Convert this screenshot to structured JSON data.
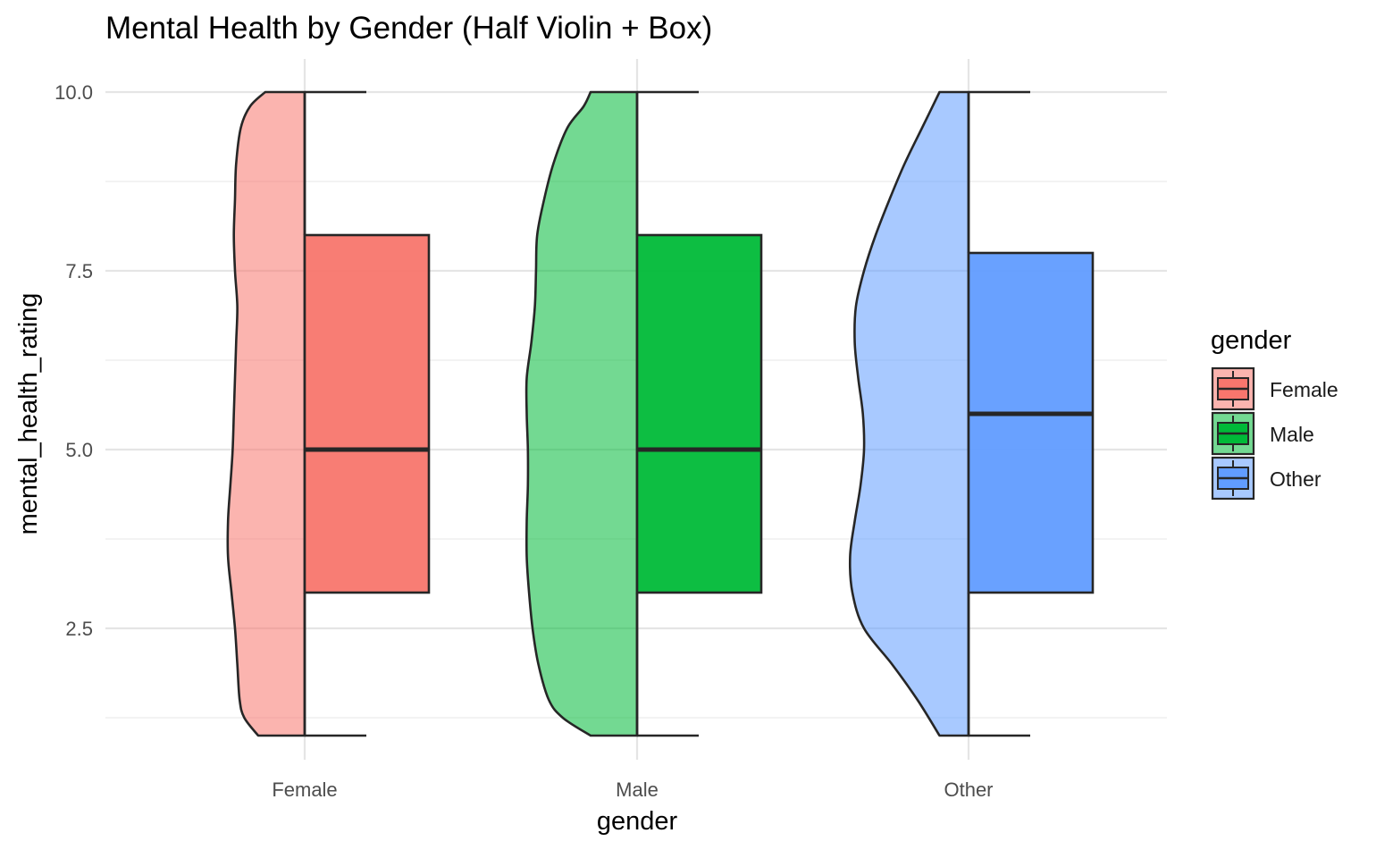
{
  "chart_data": {
    "type": "box",
    "title": "Mental Health by Gender (Half Violin + Box)",
    "xlabel": "gender",
    "ylabel": "mental_health_rating",
    "categories": [
      "Female",
      "Male",
      "Other"
    ],
    "ylim": [
      0.8,
      10.35
    ],
    "yticks": [
      2.5,
      5.0,
      7.5,
      10.0
    ],
    "ytick_labels": [
      "2.5",
      "5.0",
      "7.5",
      "10.0"
    ],
    "grid": true,
    "legend": {
      "title": "gender",
      "position": "right",
      "entries": [
        "Female",
        "Male",
        "Other"
      ]
    },
    "colors": {
      "Female": "#F8766D",
      "Male": "#00BA38",
      "Other": "#619CFF"
    },
    "series": [
      {
        "name": "Female",
        "box": {
          "min": 1,
          "q1": 3,
          "median": 5,
          "q3": 8,
          "max": 10
        },
        "violin_density": [
          [
            1.0,
            0.4
          ],
          [
            1.25,
            0.52
          ],
          [
            1.5,
            0.56
          ],
          [
            2.0,
            0.58
          ],
          [
            2.5,
            0.6
          ],
          [
            3.0,
            0.63
          ],
          [
            3.5,
            0.66
          ],
          [
            4.0,
            0.66
          ],
          [
            4.5,
            0.64
          ],
          [
            5.0,
            0.62
          ],
          [
            5.5,
            0.61
          ],
          [
            6.0,
            0.6
          ],
          [
            6.5,
            0.59
          ],
          [
            7.0,
            0.58
          ],
          [
            7.5,
            0.6
          ],
          [
            8.0,
            0.61
          ],
          [
            8.5,
            0.6
          ],
          [
            9.0,
            0.59
          ],
          [
            9.5,
            0.55
          ],
          [
            9.8,
            0.47
          ],
          [
            10.0,
            0.34
          ]
        ]
      },
      {
        "name": "Male",
        "box": {
          "min": 1,
          "q1": 3,
          "median": 5,
          "q3": 8,
          "max": 10
        },
        "violin_density": [
          [
            1.0,
            0.4
          ],
          [
            1.25,
            0.64
          ],
          [
            1.5,
            0.76
          ],
          [
            2.0,
            0.85
          ],
          [
            2.5,
            0.9
          ],
          [
            3.0,
            0.93
          ],
          [
            3.5,
            0.95
          ],
          [
            4.0,
            0.95
          ],
          [
            4.5,
            0.94
          ],
          [
            5.0,
            0.94
          ],
          [
            5.5,
            0.95
          ],
          [
            6.0,
            0.95
          ],
          [
            6.5,
            0.91
          ],
          [
            7.0,
            0.88
          ],
          [
            7.5,
            0.87
          ],
          [
            8.0,
            0.86
          ],
          [
            8.5,
            0.8
          ],
          [
            9.0,
            0.72
          ],
          [
            9.5,
            0.6
          ],
          [
            9.8,
            0.46
          ],
          [
            10.0,
            0.4
          ]
        ]
      },
      {
        "name": "Other",
        "box": {
          "min": 1,
          "q1": 3,
          "median": 5.5,
          "q3": 7.75,
          "max": 10
        },
        "violin_density": [
          [
            1.0,
            0.25
          ],
          [
            1.5,
            0.44
          ],
          [
            2.0,
            0.66
          ],
          [
            2.5,
            0.9
          ],
          [
            3.0,
            1.0
          ],
          [
            3.5,
            1.02
          ],
          [
            4.0,
            0.98
          ],
          [
            4.5,
            0.93
          ],
          [
            5.0,
            0.9
          ],
          [
            5.5,
            0.91
          ],
          [
            6.0,
            0.95
          ],
          [
            6.5,
            0.98
          ],
          [
            7.0,
            0.97
          ],
          [
            7.5,
            0.9
          ],
          [
            8.0,
            0.8
          ],
          [
            8.5,
            0.68
          ],
          [
            9.0,
            0.55
          ],
          [
            9.5,
            0.4
          ],
          [
            10.0,
            0.25
          ]
        ]
      }
    ]
  }
}
